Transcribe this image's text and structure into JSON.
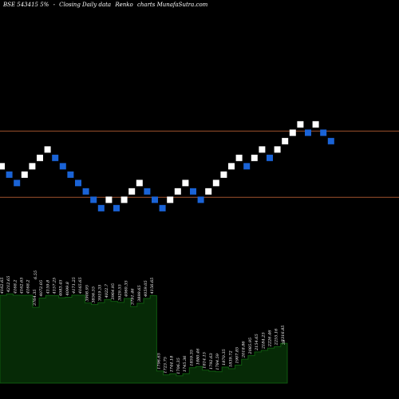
{
  "header": {
    "symbol": "BSE 543415 5%",
    "separator": "-",
    "chart_type": "Closing Daily data",
    "brand": "Renko",
    "site": "charts MunafaSutra.com"
  },
  "colors": {
    "background": "#000000",
    "up_brick": "#ffffff",
    "down_brick": "#1a63d6",
    "reference_line": "#a0522d",
    "volume_fill": "#062a06",
    "volume_line": "#0f5a0f",
    "label_text": "#ffffff"
  },
  "chart_data": {
    "type": "renko",
    "brick_direction": [
      1,
      -1,
      -1,
      1,
      1,
      1,
      1,
      -1,
      -1,
      -1,
      -1,
      -1,
      -1,
      -1,
      1,
      -1,
      1,
      1,
      1,
      -1,
      -1,
      -1,
      1,
      1,
      1,
      -1,
      -1,
      1,
      1,
      1,
      1,
      1,
      -1,
      1,
      1,
      -1,
      1,
      1,
      1,
      1,
      -1,
      1,
      -1,
      -1
    ],
    "start_level": 4.3,
    "reference_levels": [
      9.5,
      1.6
    ],
    "volume_labels": [
      "4162.65",
      "4212.65",
      "4168.2",
      "4162.65",
      "4168.2",
      "3764.35",
      "4072.05",
      "4159.8",
      "4157.25",
      "4083.45",
      "4099.8",
      "4171.25",
      "4165.65",
      "3908.95",
      "3856.55",
      "3919.35",
      "4022.7",
      "3964.95",
      "3929.55",
      "4060.35",
      "3791.46",
      "3899.65",
      "4059.05",
      "4156.65",
      "1796.65",
      "1723.75",
      "1744.18",
      "1706.35",
      "1745.36",
      "1859.35",
      "1880.46",
      "1814.15",
      "1792.63",
      "1784.59",
      "1870.35",
      "1839.72",
      "1907.85",
      "2018.86",
      "2085.95",
      "2154.65",
      "2184.25",
      "2226.46",
      "2255.16",
      "2316.85"
    ],
    "volume_top_label": "6.55",
    "volume_end_label": "35"
  }
}
